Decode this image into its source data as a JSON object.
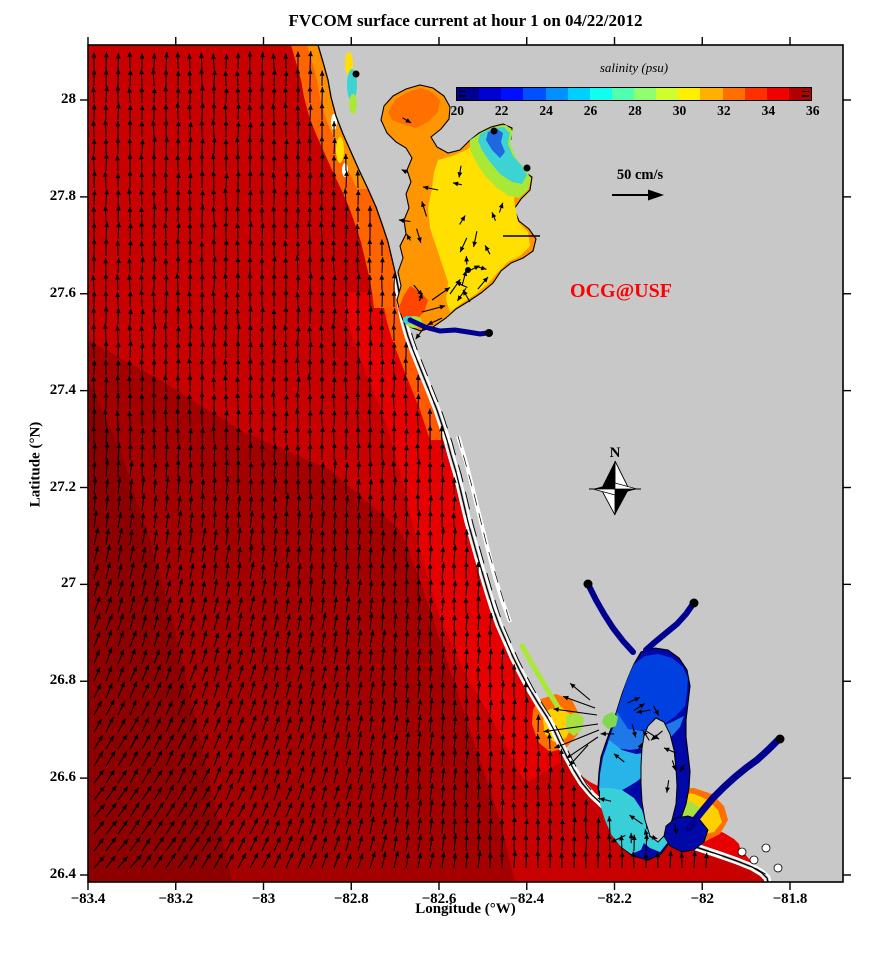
{
  "figure": {
    "title": "FVCOM surface current at hour 1 on 04/22/2012",
    "watermark": "OCG@USF",
    "scale_label": "50 cm/s",
    "compass_label": "N"
  },
  "axes": {
    "xlabel": "Longitude (°W)",
    "ylabel": "Latitude (°N)",
    "x_tick_labels": [
      "−83.4",
      "−83.2",
      "−83",
      "−82.8",
      "−82.6",
      "−82.4",
      "−82.2",
      "−82",
      "−81.8"
    ],
    "y_tick_labels": [
      "28",
      "27.8",
      "27.6",
      "27.4",
      "27.2",
      "27",
      "26.8",
      "26.6",
      "26.4"
    ]
  },
  "colorbar": {
    "label": "salinity (psu)",
    "tick_labels": [
      "20",
      "22",
      "24",
      "26",
      "28",
      "30",
      "32",
      "34",
      "36"
    ],
    "colors": [
      "#000090",
      "#0000D0",
      "#0010FF",
      "#0050FF",
      "#0090FF",
      "#00D0FF",
      "#10FFF0",
      "#50FFB0",
      "#90FF70",
      "#D0FF30",
      "#FFF000",
      "#FFB000",
      "#FF7000",
      "#FF3000",
      "#F00000",
      "#B00000"
    ]
  },
  "colors": {
    "land": "#C8C8C8",
    "frame": "#000000",
    "arrow": "#000000",
    "watermark_red": "#FF0000",
    "gulf_base": "#C80000",
    "gulf_dark": "#A40000",
    "gulf_deep": "#8E0000",
    "gulf_nearshore": "#E60000",
    "coast_orange": "#FF6400",
    "coast_orange_inner": "#FF9000",
    "fringe_orange": "#FF5A00",
    "bay_orange": "#FF9500",
    "bay_orange_deep": "#FF7000",
    "bay_yellow": "#FFE000",
    "bay_greenyellow": "#AAE838",
    "bay_cyan": "#3ED3D3",
    "bay_blue": "#2068E0",
    "mouth_orange_red": "#FF4500",
    "harbor_navy": "#0008A8",
    "harbor_blue": "#0040E0",
    "harbor_mid": "#1E78E8",
    "harbor_cyan": "#28B4E8",
    "harbor_teal": "#38CFD8",
    "pass_green": "#7FD850",
    "plume_orange": "#FF7000",
    "plume_yellow": "#FFD000",
    "plume_greenyellow": "#A8E040",
    "river_navy": "#000090",
    "white": "#FFFFFF"
  },
  "chart_data": {
    "type": "heatmap",
    "subtype": "geographic salinity field with surface-current vector arrows (FVCOM model snapshot)",
    "title": "FVCOM surface current at hour 1 on 04/22/2012",
    "xlabel": "Longitude (°W)",
    "ylabel": "Latitude (°N)",
    "xlim": [
      -83.4,
      -81.68
    ],
    "ylim": [
      26.39,
      28.11
    ],
    "x_ticks": [
      -83.4,
      -83.2,
      -83.0,
      -82.8,
      -82.6,
      -82.4,
      -82.2,
      -82.0,
      -81.8
    ],
    "y_ticks": [
      26.4,
      26.6,
      26.8,
      27.0,
      27.2,
      27.4,
      27.6,
      27.8,
      28.0
    ],
    "grid": false,
    "colorbar": {
      "label": "salinity (psu)",
      "range": [
        20,
        36
      ],
      "ticks": [
        20,
        22,
        24,
        26,
        28,
        30,
        32,
        34,
        36
      ],
      "palette": "jet, 16 discrete segments",
      "colors": [
        "#000090",
        "#0000D0",
        "#0010FF",
        "#0050FF",
        "#0090FF",
        "#00D0FF",
        "#10FFF0",
        "#50FFB0",
        "#90FF70",
        "#D0FF30",
        "#FFF000",
        "#FFB000",
        "#FF7000",
        "#FF3000",
        "#F00000",
        "#B00000"
      ],
      "position": "inside plot, top right, horizontal"
    },
    "vector_key": {
      "label": "50 cm/s",
      "value": 50,
      "units": "cm/s"
    },
    "annotations": [
      {
        "text": "OCG@USF",
        "color": "#FF0000",
        "lon": -82.19,
        "lat": 27.6
      },
      {
        "text": "N",
        "type": "compass-rose",
        "lon": -82.2,
        "lat": 27.21
      }
    ],
    "regions": [
      {
        "region": "Gulf of Mexico offshore",
        "salinity_psu": "35-36"
      },
      {
        "region": "Gulf nearshore band",
        "salinity_psu": "33-35"
      },
      {
        "region": "Coastal strip north of Tampa Bay",
        "salinity_psu": "30-33"
      },
      {
        "region": "Old Tampa Bay (NW lobe)",
        "salinity_psu": "31-32"
      },
      {
        "region": "Tampa Bay mid / lower bay",
        "salinity_psu": "29-31"
      },
      {
        "region": "Hillsborough Bay (NE lobe)",
        "salinity_psu": "23-28"
      },
      {
        "region": "Manatee River",
        "salinity_psu": "20-22"
      },
      {
        "region": "Sarasota barrier lagoons",
        "salinity_psu": "29-31"
      },
      {
        "region": "Charlotte Harbor upper + Myakka/Peace rivers",
        "salinity_psu": "20-23"
      },
      {
        "region": "Charlotte Harbor mid",
        "salinity_psu": "23-26"
      },
      {
        "region": "Pine Island Sound",
        "salinity_psu": "25-28"
      },
      {
        "region": "Boca Grande Pass plume",
        "salinity_psu": "29-32"
      },
      {
        "region": "Caloosahatchee River",
        "salinity_psu": "20-21"
      },
      {
        "region": "San Carlos Bay / Sanibel plume",
        "salinity_psu": "28-31"
      }
    ],
    "currents": {
      "offshore": "uniform northward flow, ~50 cm/s (dense vertical arrows)",
      "southwest_corner": "flow rotated toward the northeast",
      "boca_grande_pass": "strong westward outflow jet fanning into the Gulf",
      "tampa_bay": "weaker mixed-direction flow inside the bay"
    },
    "river_markers_lonlat": [
      [
        -82.79,
        28.05
      ],
      [
        -82.47,
        27.94
      ],
      [
        -82.4,
        27.86
      ],
      [
        -82.54,
        27.65
      ],
      [
        -82.49,
        27.52
      ],
      [
        -82.26,
        27.0
      ],
      [
        -82.02,
        26.96
      ],
      [
        -81.83,
        26.68
      ]
    ]
  }
}
